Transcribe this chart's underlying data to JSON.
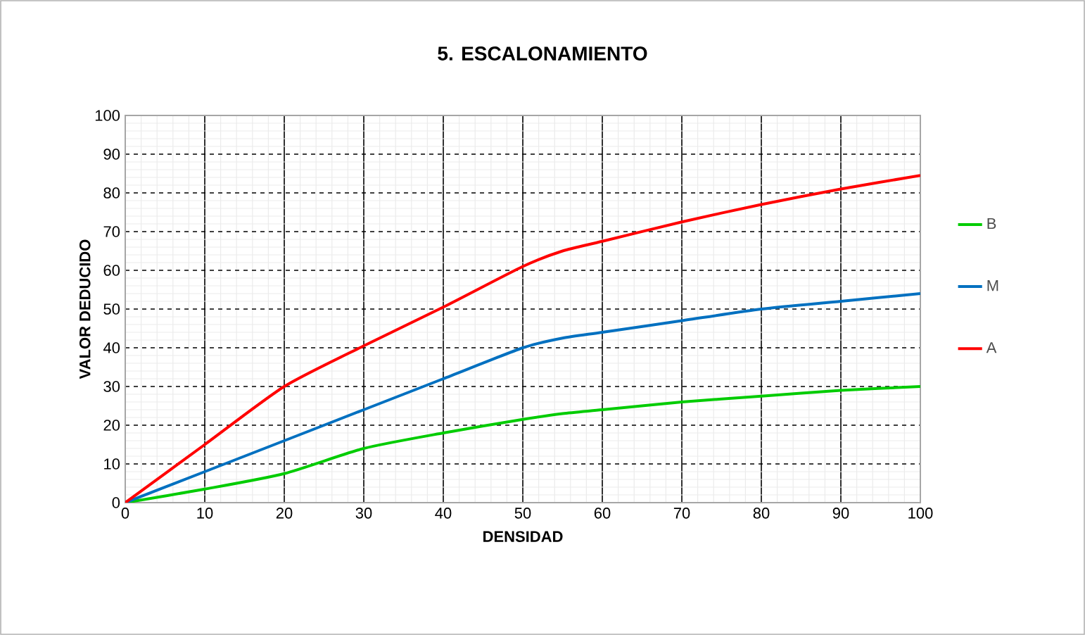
{
  "chart_data": {
    "type": "line",
    "title": "5. ESCALONAMIENTO",
    "xlabel": "DENSIDAD",
    "ylabel": "VALOR DEDUCIDO",
    "x": [
      0,
      10,
      20,
      30,
      40,
      50,
      55,
      60,
      70,
      80,
      90,
      100
    ],
    "series": [
      {
        "name": "B",
        "color": "#00cc00",
        "values": [
          0,
          3.5,
          7.5,
          14,
          18,
          21.5,
          23,
          24,
          26,
          27.5,
          29,
          30
        ]
      },
      {
        "name": "M",
        "color": "#0070c0",
        "values": [
          0,
          8,
          16,
          24,
          32,
          40,
          42.5,
          44,
          47,
          50,
          52,
          54
        ]
      },
      {
        "name": "A",
        "color": "#ff0000",
        "values": [
          0,
          15,
          30,
          40.5,
          50.5,
          61,
          65,
          67.5,
          72.5,
          77,
          81,
          84.5
        ]
      }
    ],
    "xlim": [
      0,
      100
    ],
    "ylim": [
      0,
      100
    ],
    "xticks": [
      0,
      10,
      20,
      30,
      40,
      50,
      60,
      70,
      80,
      90,
      100
    ],
    "yticks": [
      0,
      10,
      20,
      30,
      40,
      50,
      60,
      70,
      80,
      90,
      100
    ],
    "grid": true,
    "legend": "right"
  }
}
